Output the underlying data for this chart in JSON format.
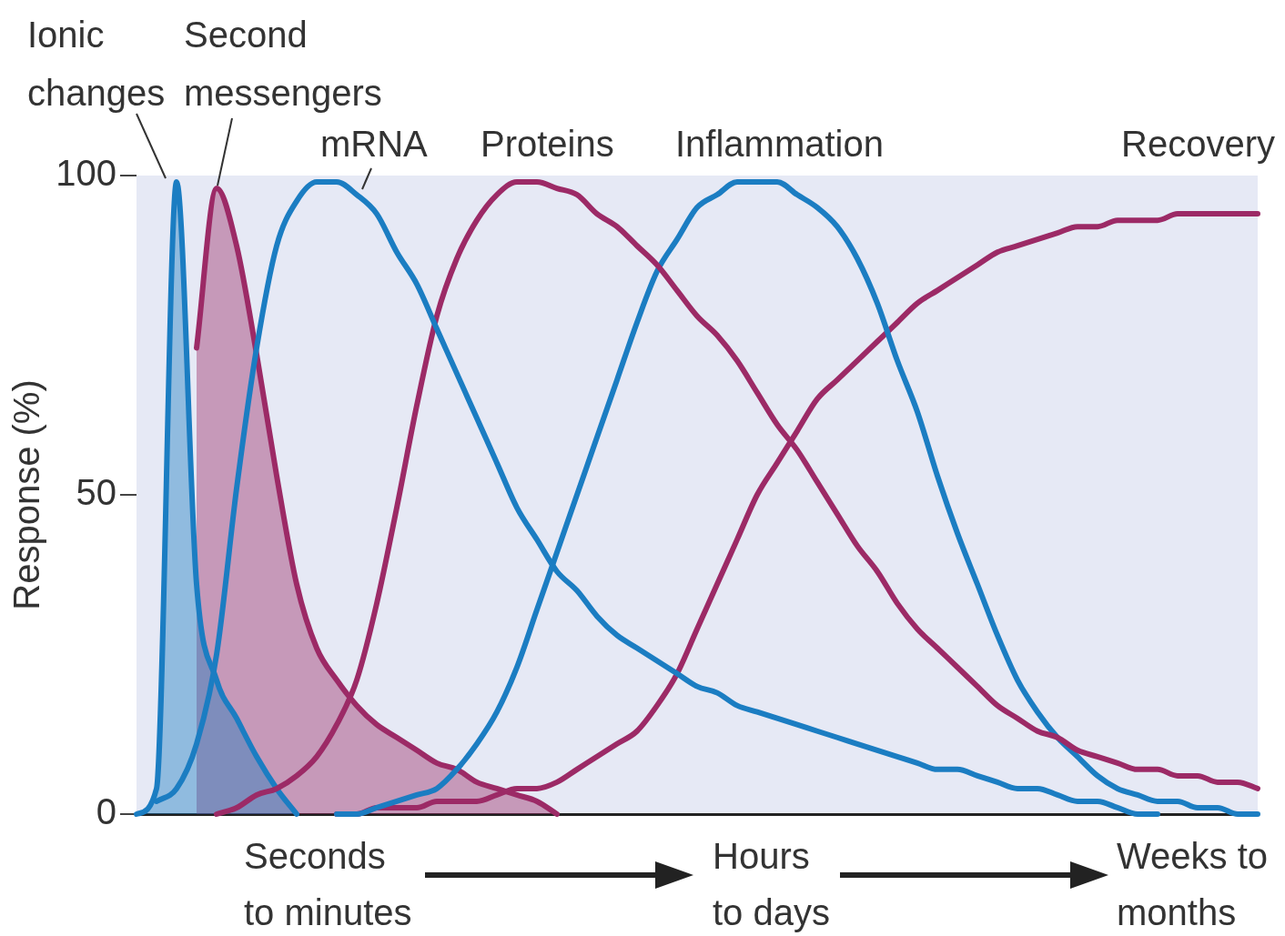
{
  "chart_data": {
    "type": "line",
    "ylabel": "Response (%)",
    "ylim": [
      0,
      100
    ],
    "yticks": [
      0,
      50,
      100
    ],
    "grid": false,
    "legend": false,
    "marker": "none",
    "line_style": "solid",
    "categories": [
      null,
      null,
      null,
      null,
      null,
      null,
      null,
      null,
      null,
      null,
      null,
      null,
      null,
      null,
      null,
      null,
      null,
      null,
      null,
      null,
      null,
      null,
      null,
      null,
      null,
      null,
      null,
      null,
      null,
      null,
      null,
      null,
      null,
      null,
      null,
      null,
      null,
      null,
      null,
      null,
      null,
      null,
      null,
      null,
      null,
      null,
      null,
      null,
      null,
      null,
      null,
      null,
      null,
      null,
      null,
      null,
      null
    ],
    "series": [
      {
        "name": "Ionic changes",
        "type": "area",
        "color": "#1b7dc2",
        "values": [
          0,
          4,
          99,
          36,
          21,
          15,
          9,
          4,
          0,
          null,
          null,
          null,
          null,
          null,
          null,
          null,
          null,
          null,
          null,
          null,
          null,
          null,
          null,
          null,
          null,
          null,
          null,
          null,
          null,
          null,
          null,
          null,
          null,
          null,
          null,
          null,
          null,
          null,
          null,
          null,
          null,
          null,
          null,
          null,
          null,
          null,
          null,
          null,
          null,
          null,
          null,
          null,
          null,
          null,
          null,
          null,
          null
        ]
      },
      {
        "name": "Second messengers",
        "type": "area",
        "color": "#9c2a66",
        "values": [
          null,
          null,
          null,
          73,
          98,
          89,
          72,
          53,
          36,
          26,
          21,
          17,
          14,
          12,
          10,
          8,
          7,
          5,
          4,
          3,
          2,
          0,
          null,
          null,
          null,
          null,
          null,
          null,
          null,
          null,
          null,
          null,
          null,
          null,
          null,
          null,
          null,
          null,
          null,
          null,
          null,
          null,
          null,
          null,
          null,
          null,
          null,
          null,
          null,
          null,
          null,
          null,
          null,
          null,
          null,
          null,
          null
        ]
      },
      {
        "name": "mRNA",
        "color": "#1b7dc2",
        "values": [
          null,
          2,
          4,
          11,
          25,
          51,
          73,
          89,
          96,
          99,
          99,
          97,
          94,
          88,
          83,
          76,
          69,
          62,
          55,
          48,
          43,
          38,
          35,
          31,
          28,
          26,
          24,
          22,
          20,
          19,
          17,
          16,
          15,
          14,
          13,
          12,
          11,
          10,
          9,
          8,
          7,
          7,
          6,
          5,
          4,
          4,
          3,
          2,
          2,
          1,
          0,
          0,
          null,
          null,
          null,
          null,
          null
        ]
      },
      {
        "name": "Proteins",
        "color": "#9c2a66",
        "values": [
          null,
          null,
          null,
          null,
          0,
          1,
          3,
          4,
          6,
          9,
          14,
          21,
          33,
          48,
          64,
          78,
          87,
          93,
          97,
          99,
          99,
          98,
          97,
          94,
          92,
          89,
          86,
          82,
          78,
          75,
          71,
          66,
          61,
          57,
          52,
          47,
          42,
          38,
          33,
          29,
          26,
          23,
          20,
          17,
          15,
          13,
          12,
          10,
          9,
          8,
          7,
          7,
          6,
          6,
          5,
          5,
          4
        ]
      },
      {
        "name": "Inflammation",
        "color": "#1b7dc2",
        "values": [
          null,
          null,
          null,
          null,
          null,
          null,
          null,
          null,
          null,
          null,
          0,
          0,
          1,
          2,
          3,
          4,
          7,
          11,
          16,
          23,
          32,
          41,
          50,
          59,
          68,
          77,
          85,
          90,
          95,
          97,
          99,
          99,
          99,
          97,
          95,
          92,
          87,
          80,
          71,
          63,
          53,
          44,
          36,
          28,
          21,
          16,
          12,
          9,
          6,
          4,
          3,
          2,
          2,
          1,
          1,
          0,
          0
        ]
      },
      {
        "name": "Recovery",
        "color": "#9c2a66",
        "values": [
          null,
          null,
          null,
          null,
          null,
          null,
          null,
          null,
          null,
          null,
          0,
          0,
          1,
          1,
          1,
          2,
          2,
          2,
          3,
          4,
          4,
          5,
          7,
          9,
          11,
          13,
          17,
          22,
          29,
          36,
          43,
          50,
          55,
          60,
          65,
          68,
          71,
          74,
          77,
          80,
          82,
          84,
          86,
          88,
          89,
          90,
          91,
          92,
          92,
          93,
          93,
          93,
          94,
          94,
          94,
          94,
          94
        ]
      }
    ],
    "annotations": [
      "Seconds to minutes",
      "Hours to days",
      "Weeks to months"
    ]
  }
}
